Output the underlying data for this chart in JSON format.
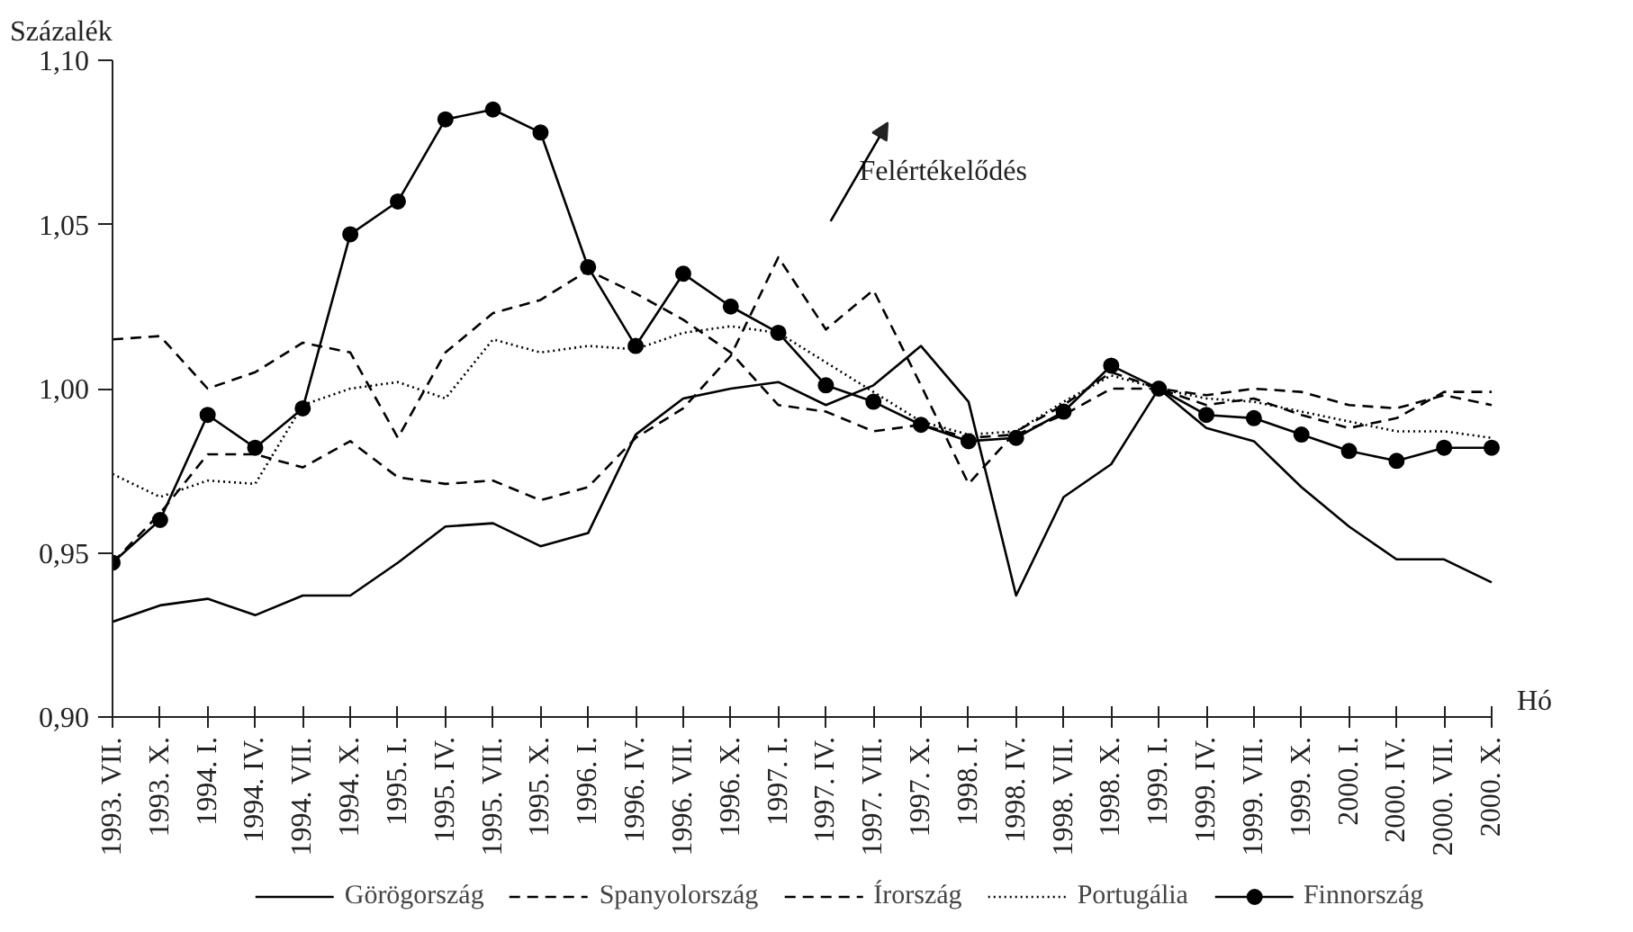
{
  "chart_data": {
    "type": "line",
    "ylabel": "Százalék",
    "xlabel": "Hó",
    "categories": [
      "1993. VII.",
      "1993. X.",
      "1994. I.",
      "1994. IV.",
      "1994. VII.",
      "1994. X.",
      "1995. I.",
      "1995. IV.",
      "1995. VII.",
      "1995. X.",
      "1996. I.",
      "1996. IV.",
      "1996. VII.",
      "1996. X.",
      "1997. I.",
      "1997. IV.",
      "1997. VII.",
      "1997. X.",
      "1998. I.",
      "1998. IV.",
      "1998. VII.",
      "1998. X.",
      "1999. I.",
      "1999. IV.",
      "1999. VII.",
      "1999. X.",
      "2000. I.",
      "2000. IV.",
      "2000. VII.",
      "2000. X."
    ],
    "series": [
      {
        "name": "Görögország",
        "color": "#000000",
        "line_style": "solid",
        "marker": "none",
        "values": [
          0.929,
          0.934,
          0.936,
          0.931,
          0.937,
          0.937,
          0.947,
          0.958,
          0.959,
          0.952,
          0.956,
          0.986,
          0.997,
          1.0,
          1.002,
          0.995,
          1.001,
          1.013,
          0.996,
          0.937,
          0.967,
          0.977,
          1.0,
          0.988,
          0.984,
          0.97,
          0.958,
          0.948,
          0.948,
          0.941
        ]
      },
      {
        "name": "Spanyolország",
        "color": "#000000",
        "line_style": "dashed",
        "marker": "none",
        "values": [
          1.015,
          1.016,
          1.0,
          1.005,
          1.014,
          1.011,
          0.985,
          1.011,
          1.023,
          1.027,
          1.036,
          1.029,
          1.021,
          1.011,
          0.995,
          0.993,
          0.987,
          0.989,
          0.985,
          0.986,
          0.992,
          1.0,
          1.0,
          0.998,
          1.0,
          0.999,
          0.995,
          0.994,
          0.998,
          0.995
        ]
      },
      {
        "name": "Írország",
        "color": "#000000",
        "line_style": "dashed",
        "marker": "none",
        "values": [
          0.947,
          0.962,
          0.98,
          0.98,
          0.976,
          0.984,
          0.973,
          0.971,
          0.972,
          0.966,
          0.97,
          0.985,
          0.994,
          1.01,
          1.04,
          1.018,
          1.03,
          1.001,
          0.971,
          0.987,
          0.995,
          1.005,
          1.0,
          0.995,
          0.997,
          0.992,
          0.988,
          0.991,
          0.999,
          0.999
        ]
      },
      {
        "name": "Portugália",
        "color": "#000000",
        "line_style": "dotted",
        "marker": "none",
        "values": [
          0.974,
          0.967,
          0.972,
          0.971,
          0.995,
          1.0,
          1.002,
          0.997,
          1.015,
          1.011,
          1.013,
          1.012,
          1.017,
          1.019,
          1.017,
          1.008,
          0.999,
          0.99,
          0.986,
          0.987,
          0.996,
          1.004,
          1.0,
          0.997,
          0.996,
          0.993,
          0.99,
          0.987,
          0.987,
          0.985
        ]
      },
      {
        "name": "Finnország",
        "color": "#000000",
        "line_style": "solid",
        "marker": "circle",
        "values": [
          0.947,
          0.96,
          0.992,
          0.982,
          0.994,
          1.047,
          1.057,
          1.082,
          1.085,
          1.078,
          1.037,
          1.013,
          1.035,
          1.025,
          1.017,
          1.001,
          0.996,
          0.989,
          0.984,
          0.985,
          0.993,
          1.007,
          1.0,
          0.992,
          0.991,
          0.986,
          0.981,
          0.978,
          0.982,
          0.982
        ]
      }
    ],
    "ylim": [
      0.9,
      1.1
    ],
    "yticks": [
      {
        "value": 0.9,
        "label": "0,90"
      },
      {
        "value": 0.95,
        "label": "0,95"
      },
      {
        "value": 1.0,
        "label": "1,00"
      },
      {
        "value": 1.05,
        "label": "1,05"
      },
      {
        "value": 1.1,
        "label": "1,10"
      }
    ],
    "annotations": [
      "Felértékelődés"
    ],
    "legend": "bottom",
    "grid": false
  }
}
